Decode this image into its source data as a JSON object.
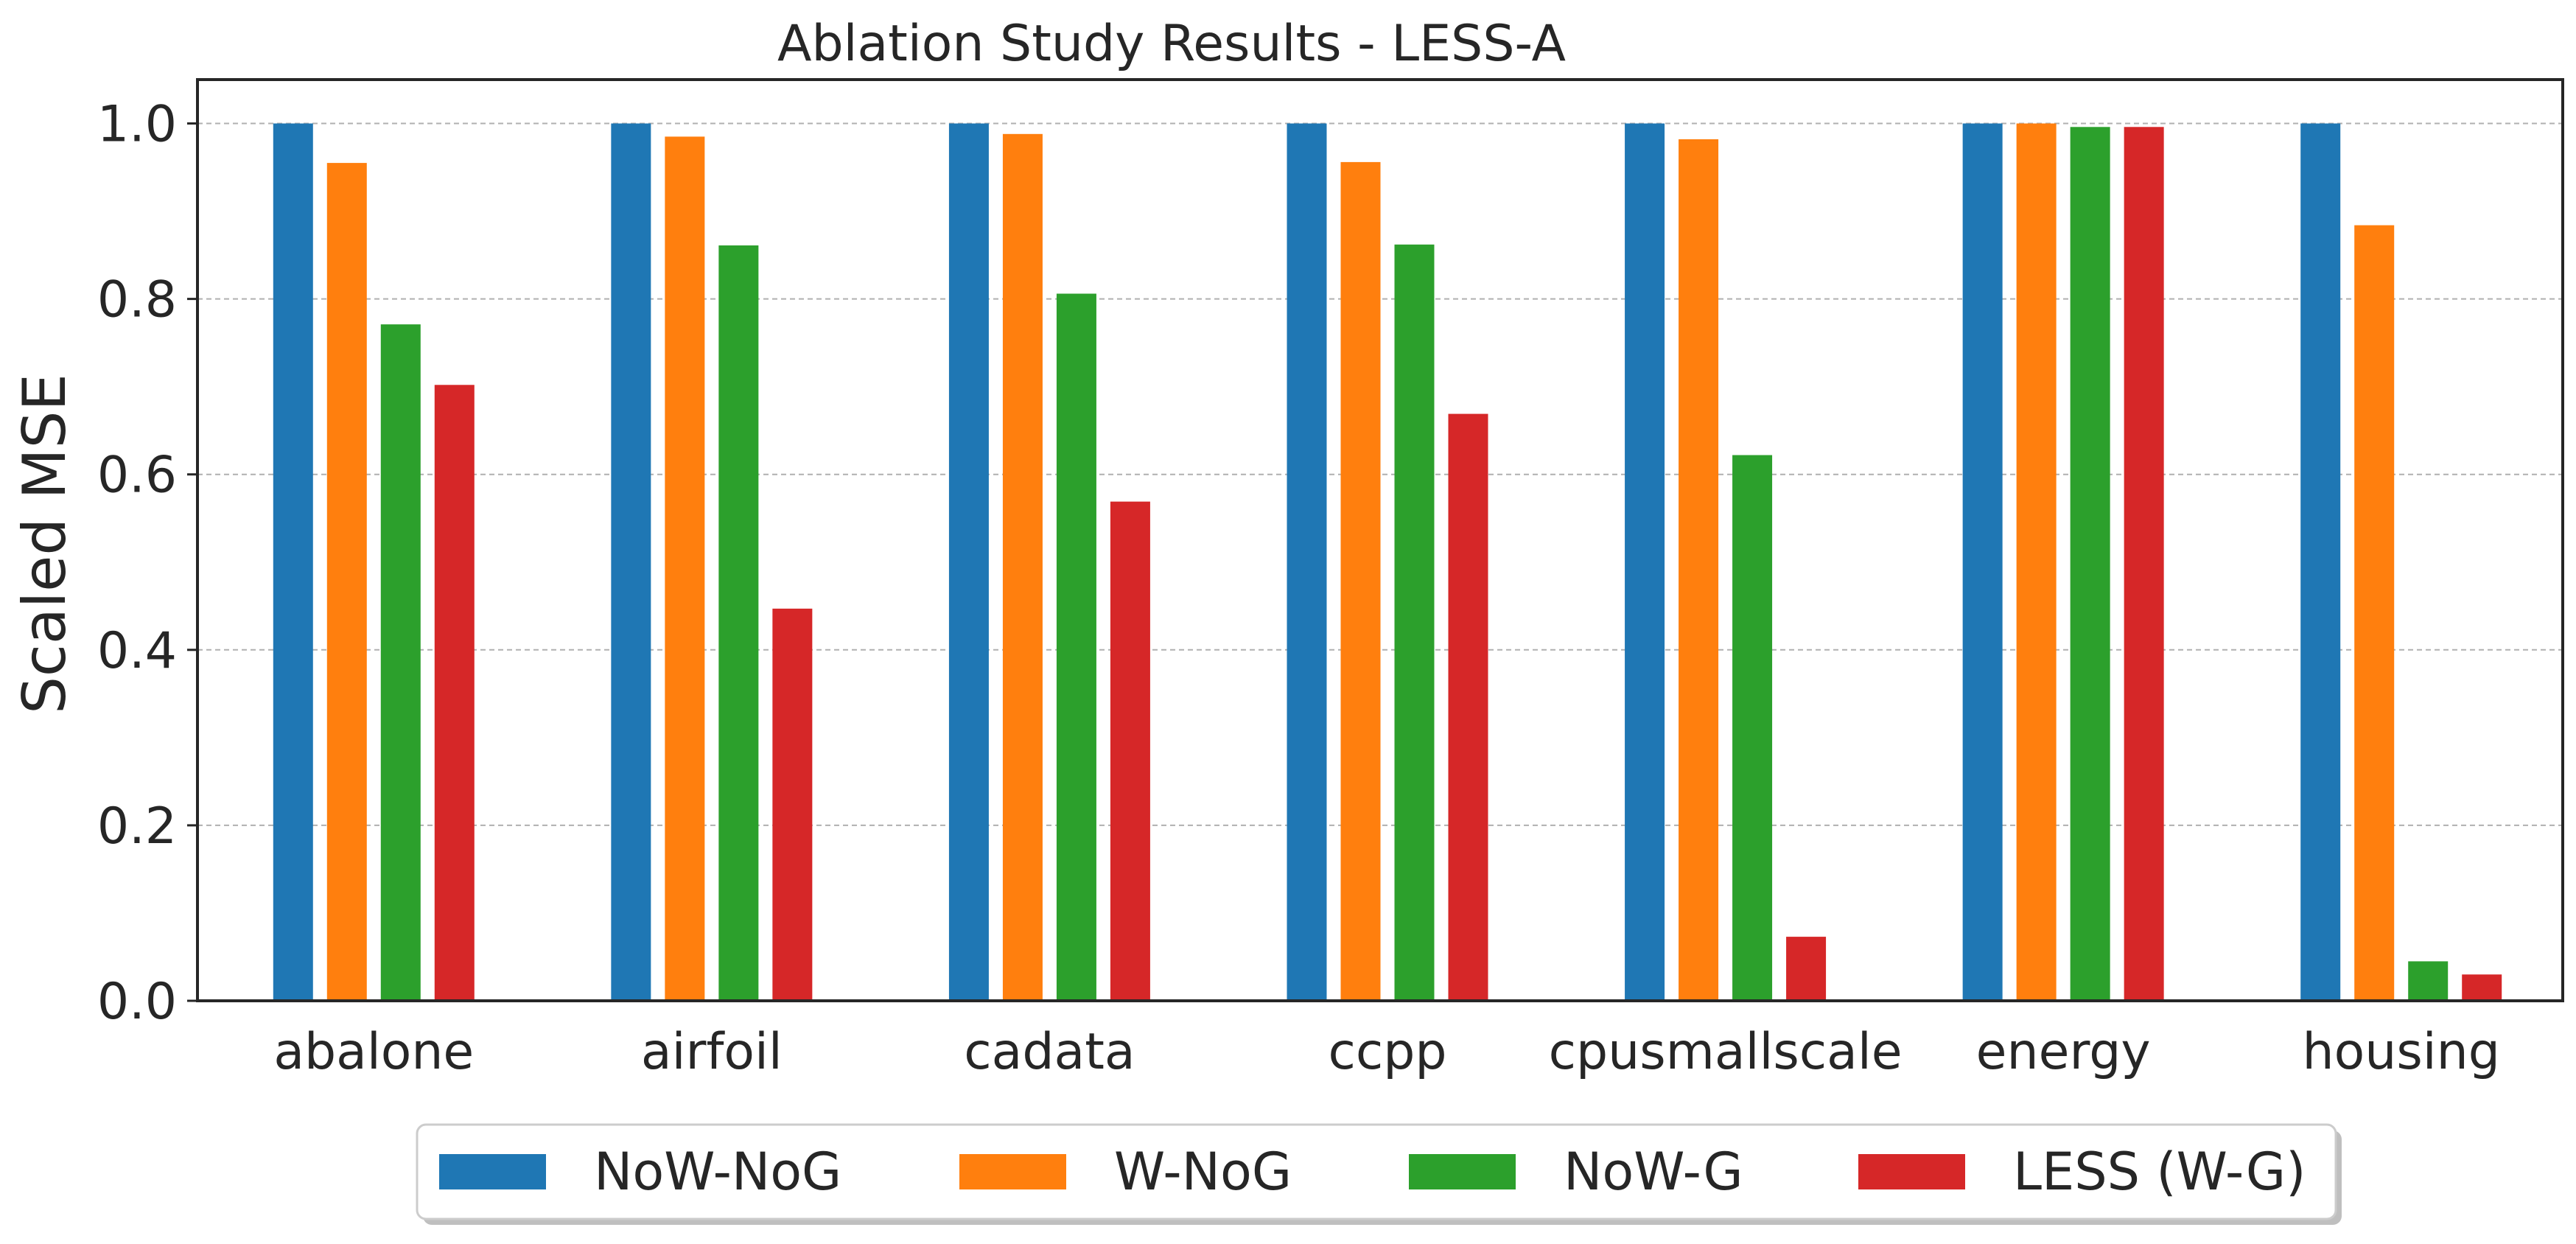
{
  "chart_data": {
    "type": "bar",
    "title": "Ablation Study Results - LESS-A",
    "xlabel": "",
    "ylabel": "Scaled MSE",
    "ylim": [
      0,
      1.05
    ],
    "yticks": [
      "0.0",
      "0.2",
      "0.4",
      "0.6",
      "0.8",
      "1.0"
    ],
    "ytick_values": [
      0,
      0.2,
      0.4,
      0.6,
      0.8,
      1.0
    ],
    "grid": "horizontal dashed",
    "legend_position": "bottom-center, outside",
    "categories": [
      "abalone",
      "airfoil",
      "cadata",
      "ccpp",
      "cpusmallscale",
      "energy",
      "housing"
    ],
    "series": [
      {
        "name": "NoW-NoG",
        "color": "#1f77b4",
        "values": [
          1.0,
          1.0,
          1.0,
          1.0,
          1.0,
          1.0,
          1.0
        ]
      },
      {
        "name": "W-NoG",
        "color": "#ff7f0e",
        "values": [
          0.955,
          0.985,
          0.988,
          0.956,
          0.982,
          1.0,
          0.884
        ]
      },
      {
        "name": "NoW-G",
        "color": "#2ca02c",
        "values": [
          0.771,
          0.861,
          0.806,
          0.862,
          0.622,
          0.996,
          0.045
        ]
      },
      {
        "name": "LESS (W-G)",
        "color": "#d62728",
        "values": [
          0.702,
          0.447,
          0.569,
          0.669,
          0.073,
          0.996,
          0.03
        ]
      }
    ]
  }
}
